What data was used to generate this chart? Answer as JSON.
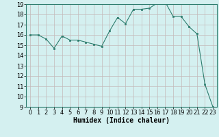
{
  "x": [
    0,
    1,
    2,
    3,
    4,
    5,
    6,
    7,
    8,
    9,
    10,
    11,
    12,
    13,
    14,
    15,
    16,
    17,
    18,
    19,
    20,
    21,
    22,
    23
  ],
  "y": [
    16.0,
    16.0,
    15.6,
    14.7,
    15.9,
    15.5,
    15.5,
    15.3,
    15.1,
    14.9,
    16.4,
    17.7,
    17.1,
    18.5,
    18.5,
    18.6,
    19.1,
    19.2,
    17.8,
    17.8,
    16.8,
    16.1,
    11.2,
    9.0
  ],
  "xlabel": "Humidex (Indice chaleur)",
  "ylim": [
    9,
    19
  ],
  "xlim": [
    -0.5,
    23.5
  ],
  "yticks": [
    9,
    10,
    11,
    12,
    13,
    14,
    15,
    16,
    17,
    18,
    19
  ],
  "xticks": [
    0,
    1,
    2,
    3,
    4,
    5,
    6,
    7,
    8,
    9,
    10,
    11,
    12,
    13,
    14,
    15,
    16,
    17,
    18,
    19,
    20,
    21,
    22,
    23
  ],
  "line_color": "#2d7d6e",
  "marker_color": "#2d7d6e",
  "bg_color": "#d4f0f0",
  "grid_color": "#c4b8b8",
  "xlabel_fontsize": 7,
  "tick_fontsize": 6
}
